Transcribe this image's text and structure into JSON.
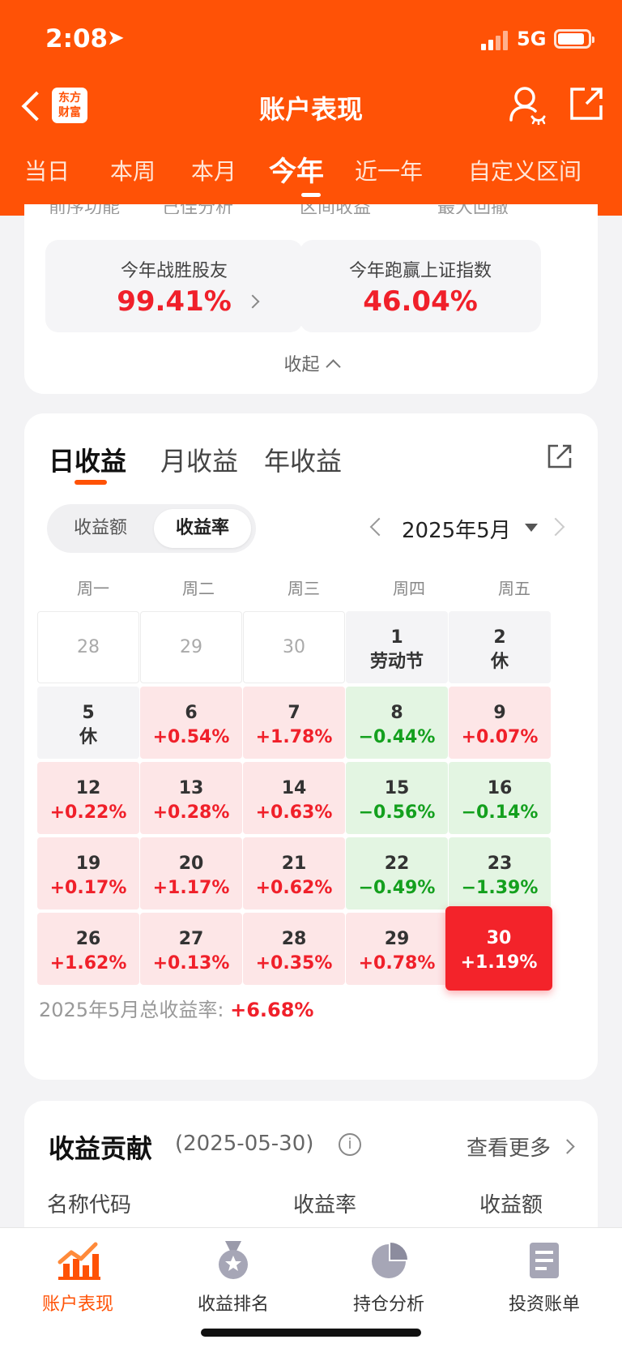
{
  "status_bar": {
    "time": "2:08",
    "network": "5G"
  },
  "header": {
    "logo_line1": "东方",
    "logo_line2": "财富",
    "title": "账户表现",
    "period_tabs": [
      "当日",
      "本周",
      "本月",
      "今年",
      "近一年",
      "自定义区间"
    ],
    "active_period": "今年"
  },
  "summary": {
    "ghost_labels": [
      "前序功能",
      "己佳分析",
      "区间收益",
      "最大回撤"
    ],
    "beat_friends_label": "今年战胜股友",
    "beat_friends_value": "99.41%",
    "beat_index_label": "今年跑赢上证指数",
    "beat_index_value": "46.04%",
    "collapse_label": "收起"
  },
  "returns": {
    "tabs": [
      "日收益",
      "月收益",
      "年收益"
    ],
    "active_tab": "日收益",
    "toggle": [
      "收益额",
      "收益率"
    ],
    "active_toggle": "收益率",
    "month_label": "2025年5月",
    "weekdays": [
      "周一",
      "周二",
      "周三",
      "周四",
      "周五"
    ],
    "rows": [
      [
        {
          "day": "28",
          "value": "",
          "type": "blank"
        },
        {
          "day": "29",
          "value": "",
          "type": "blank"
        },
        {
          "day": "30",
          "value": "",
          "type": "blank"
        },
        {
          "day": "1",
          "value": "劳动节",
          "type": "rest"
        },
        {
          "day": "2",
          "value": "休",
          "type": "rest"
        }
      ],
      [
        {
          "day": "5",
          "value": "休",
          "type": "rest"
        },
        {
          "day": "6",
          "value": "+0.54%",
          "type": "up"
        },
        {
          "day": "7",
          "value": "+1.78%",
          "type": "up"
        },
        {
          "day": "8",
          "value": "−0.44%",
          "type": "down"
        },
        {
          "day": "9",
          "value": "+0.07%",
          "type": "up"
        }
      ],
      [
        {
          "day": "12",
          "value": "+0.22%",
          "type": "up"
        },
        {
          "day": "13",
          "value": "+0.28%",
          "type": "up"
        },
        {
          "day": "14",
          "value": "+0.63%",
          "type": "up"
        },
        {
          "day": "15",
          "value": "−0.56%",
          "type": "down"
        },
        {
          "day": "16",
          "value": "−0.14%",
          "type": "down"
        }
      ],
      [
        {
          "day": "19",
          "value": "+0.17%",
          "type": "up"
        },
        {
          "day": "20",
          "value": "+1.17%",
          "type": "up"
        },
        {
          "day": "21",
          "value": "+0.62%",
          "type": "up"
        },
        {
          "day": "22",
          "value": "−0.49%",
          "type": "down"
        },
        {
          "day": "23",
          "value": "−1.39%",
          "type": "down"
        }
      ],
      [
        {
          "day": "26",
          "value": "+1.62%",
          "type": "up"
        },
        {
          "day": "27",
          "value": "+0.13%",
          "type": "up"
        },
        {
          "day": "28",
          "value": "+0.35%",
          "type": "up"
        },
        {
          "day": "29",
          "value": "+0.78%",
          "type": "up"
        },
        {
          "day": "30",
          "value": "+1.19%",
          "type": "today"
        }
      ]
    ],
    "total_label": "2025年5月总收益率:",
    "total_value": "+6.68%"
  },
  "contribution": {
    "title": "收益贡献",
    "date": "(2025-05-30)",
    "info": "i",
    "more": "查看更多",
    "columns": [
      "名称代码",
      "收益率",
      "收益额"
    ]
  },
  "tabbar": {
    "items": [
      "账户表现",
      "收益排名",
      "持仓分析",
      "投资账单"
    ],
    "icons": [
      "trend-chart-icon",
      "medal-icon",
      "pie-chart-icon",
      "document-icon"
    ],
    "active": 0
  },
  "colors": {
    "brand": "#ff5206",
    "up": "#f0202a",
    "down": "#14a01e"
  }
}
